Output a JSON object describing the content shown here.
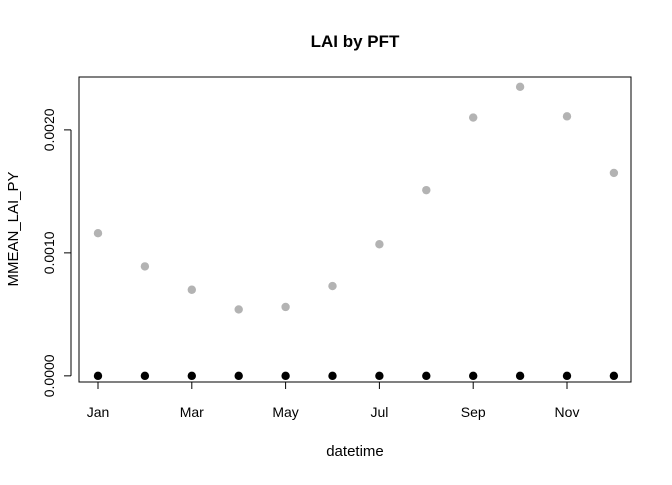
{
  "chart_data": {
    "type": "scatter",
    "title": "LAI by PFT",
    "xlabel": "datetime",
    "ylabel": "MMEAN_LAI_PY",
    "x": [
      "Jan",
      "Feb",
      "Mar",
      "Apr",
      "May",
      "Jun",
      "Jul",
      "Aug",
      "Sep",
      "Oct",
      "Nov",
      "Dec"
    ],
    "x_tick_labels": [
      "Jan",
      "Mar",
      "May",
      "Jul",
      "Sep",
      "Nov"
    ],
    "ylim": [
      -5e-05,
      0.00243
    ],
    "y_ticks": [
      0,
      0.001,
      0.002
    ],
    "y_tick_labels": [
      "0.0000",
      "0.0010",
      "0.0020"
    ],
    "grid": false,
    "legend": "none",
    "series": [
      {
        "color": "#b3b3b3",
        "values": [
          0.00116,
          0.00089,
          0.0007,
          0.00054,
          0.00056,
          0.00073,
          0.00107,
          0.00151,
          0.0021,
          0.00235,
          0.00211,
          0.00165
        ]
      },
      {
        "color": "#000000",
        "values": [
          0,
          0,
          0,
          0,
          0,
          0,
          0,
          0,
          0,
          0,
          0,
          0
        ]
      }
    ]
  }
}
